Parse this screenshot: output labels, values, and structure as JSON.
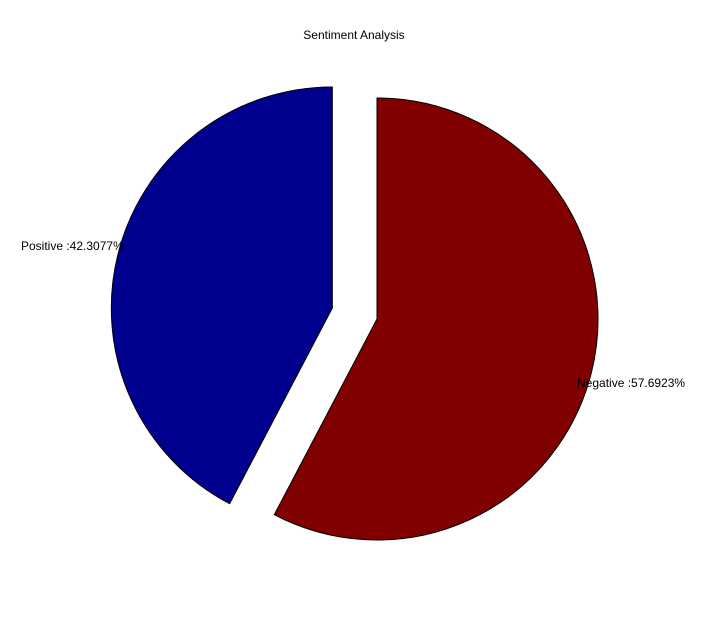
{
  "chart_data": {
    "type": "pie",
    "title": "Sentiment Analysis",
    "start_direction": "top",
    "rotation": "clockwise",
    "slices": [
      {
        "name": "Negative",
        "value": 57.6923,
        "color": "#800000",
        "exploded": false
      },
      {
        "name": "Positive",
        "value": 42.3077,
        "color": "#00008F",
        "exploded": true
      }
    ],
    "labels": [
      "Negative :57.6923%",
      "Positive :42.3077%"
    ]
  }
}
